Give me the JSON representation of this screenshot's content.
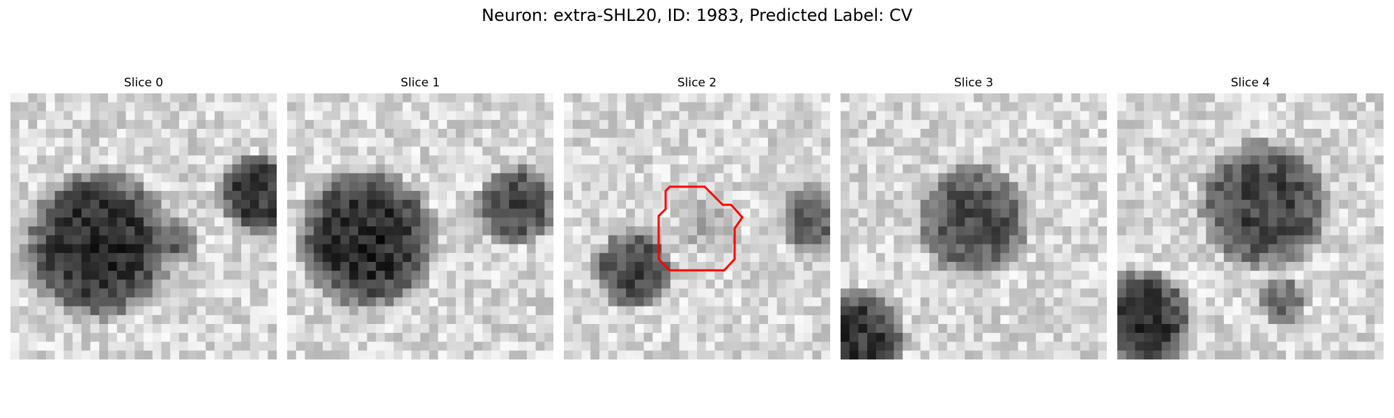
{
  "title": "Neuron: extra-SHL20, ID: 1983, Predicted Label: CV",
  "slices": [
    {
      "label": "Slice 0",
      "has_outline": false
    },
    {
      "label": "Slice 1",
      "has_outline": false
    },
    {
      "label": "Slice 2",
      "has_outline": true
    },
    {
      "label": "Slice 3",
      "has_outline": false
    },
    {
      "label": "Slice 4",
      "has_outline": false
    }
  ],
  "colors": {
    "background": "#ffffff",
    "outline": "#ff0000",
    "colormap": "grayscale"
  }
}
